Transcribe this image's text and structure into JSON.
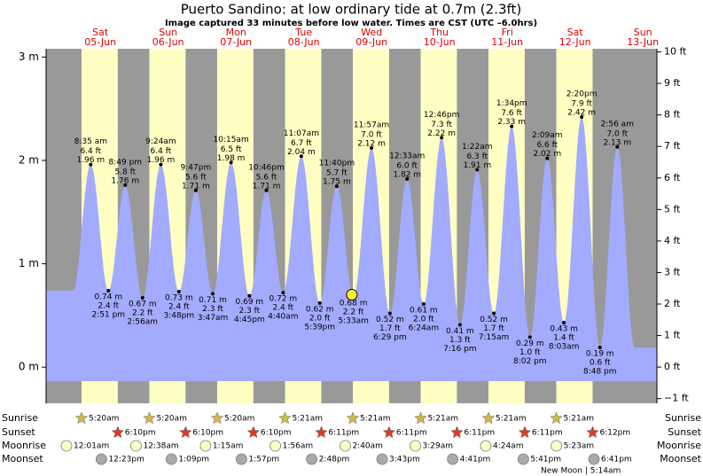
{
  "chart_data": {
    "type": "tide",
    "title": "Puerto Sandino: at low  ordinary tide at 0.7m (2.3ft)",
    "subtitle": "Image captured 33 minutes before low water. Times are CST (UTC –6.0hrs)",
    "ylim": [
      -0.35,
      3.08
    ],
    "yticks": [
      {
        "value": 0,
        "label": "0 m"
      },
      {
        "value": 1,
        "label": "1 m"
      },
      {
        "value": 2,
        "label": "2 m"
      },
      {
        "value": 3,
        "label": "3 m"
      }
    ],
    "y2lim": [
      -1.15,
      10.1
    ],
    "y2ticks": [
      {
        "value": -1,
        "label": "−1 ft"
      },
      {
        "value": 0,
        "label": "0 ft"
      },
      {
        "value": 1,
        "label": "1 ft"
      },
      {
        "value": 2,
        "label": "2 ft"
      },
      {
        "value": 3,
        "label": "3 ft"
      },
      {
        "value": 4,
        "label": "4 ft"
      },
      {
        "value": 5,
        "label": "5 ft"
      },
      {
        "value": 6,
        "label": "6 ft"
      },
      {
        "value": 7,
        "label": "7 ft"
      },
      {
        "value": 8,
        "label": "8 ft"
      },
      {
        "value": 9,
        "label": "9 ft"
      },
      {
        "value": 10,
        "label": "10 ft"
      }
    ],
    "row_labels": [
      "Sunrise",
      "Sunset",
      "Moonrise",
      "Moonset"
    ],
    "new_moon": "New Moon | 5:14am",
    "now": {
      "day": "09-Jun",
      "minutes_before_low": 33,
      "level": 0.7
    },
    "days": [
      {
        "dow": "Sat",
        "date": "05-Jun",
        "sunrise": "5:20am",
        "sunset": "6:10pm",
        "moonrise": "12:01am",
        "moonset": "12:23pm",
        "tides": [
          {
            "time": "8:35 am",
            "ft": "6.4 ft",
            "m": 1.96,
            "m_label": "1.96 m"
          },
          {
            "time": "2:51 pm",
            "ft": "2.4 ft",
            "m": 0.74,
            "m_label": "0.74 m"
          },
          {
            "time": "8:49 pm",
            "ft": "5.8 ft",
            "m": 1.76,
            "m_label": "1.76 m"
          }
        ]
      },
      {
        "dow": "Sun",
        "date": "06-Jun",
        "sunrise": "5:20am",
        "sunset": "6:10pm",
        "moonrise": "12:38am",
        "moonset": "1:09pm",
        "tides": [
          {
            "time": "2:56am",
            "ft": "2.2 ft",
            "m": 0.67,
            "m_label": "0.67 m"
          },
          {
            "time": "9:24am",
            "ft": "6.4 ft",
            "m": 1.96,
            "m_label": "1.96 m"
          },
          {
            "time": "3:48pm",
            "ft": "2.4 ft",
            "m": 0.73,
            "m_label": "0.73 m"
          },
          {
            "time": "9:47pm",
            "ft": "5.6 ft",
            "m": 1.71,
            "m_label": "1.71 m"
          }
        ]
      },
      {
        "dow": "Mon",
        "date": "07-Jun",
        "sunrise": "5:20am",
        "sunset": "6:10pm",
        "moonrise": "1:15am",
        "moonset": "1:57pm",
        "tides": [
          {
            "time": "3:47am",
            "ft": "2.3 ft",
            "m": 0.71,
            "m_label": "0.71 m"
          },
          {
            "time": "10:15am",
            "ft": "6.5 ft",
            "m": 1.98,
            "m_label": "1.98 m"
          },
          {
            "time": "4:45pm",
            "ft": "2.3 ft",
            "m": 0.69,
            "m_label": "0.69 m"
          },
          {
            "time": "10:46pm",
            "ft": "5.6 ft",
            "m": 1.71,
            "m_label": "1.71 m"
          }
        ]
      },
      {
        "dow": "Tue",
        "date": "08-Jun",
        "sunrise": "5:21am",
        "sunset": "6:11pm",
        "moonrise": "1:56am",
        "moonset": "2:48pm",
        "tides": [
          {
            "time": "4:40am",
            "ft": "2.4 ft",
            "m": 0.72,
            "m_label": "0.72 m"
          },
          {
            "time": "11:07am",
            "ft": "6.7 ft",
            "m": 2.04,
            "m_label": "2.04 m"
          },
          {
            "time": "5:39pm",
            "ft": "2.0 ft",
            "m": 0.62,
            "m_label": "0.62 m"
          },
          {
            "time": "11:40pm",
            "ft": "5.7 ft",
            "m": 1.75,
            "m_label": "1.75 m"
          }
        ]
      },
      {
        "dow": "Wed",
        "date": "09-Jun",
        "sunrise": "5:21am",
        "sunset": "6:11pm",
        "moonrise": "2:40am",
        "moonset": "3:43pm",
        "tides": [
          {
            "time": "5:33am",
            "ft": "2.2 ft",
            "m": 0.68,
            "m_label": "0.68 m"
          },
          {
            "time": "11:57am",
            "ft": "7.0 ft",
            "m": 2.12,
            "m_label": "2.12 m"
          },
          {
            "time": "6:29 pm",
            "ft": "1.7 ft",
            "m": 0.52,
            "m_label": "0.52 m"
          }
        ]
      },
      {
        "dow": "Thu",
        "date": "10-Jun",
        "sunrise": "5:21am",
        "sunset": "6:11pm",
        "moonrise": "3:29am",
        "moonset": "4:41pm",
        "tides": [
          {
            "time": "12:33am",
            "ft": "6.0 ft",
            "m": 1.82,
            "m_label": "1.82 m"
          },
          {
            "time": "6:24am",
            "ft": "2.0 ft",
            "m": 0.61,
            "m_label": "0.61 m"
          },
          {
            "time": "12:46pm",
            "ft": "7.3 ft",
            "m": 2.22,
            "m_label": "2.22 m"
          },
          {
            "time": "7:16 pm",
            "ft": "1.3 ft",
            "m": 0.41,
            "m_label": "0.41 m"
          }
        ]
      },
      {
        "dow": "Fri",
        "date": "11-Jun",
        "sunrise": "5:21am",
        "sunset": "6:11pm",
        "moonrise": "4:24am",
        "moonset": "5:41pm",
        "tides": [
          {
            "time": "1:22am",
            "ft": "6.3 ft",
            "m": 1.91,
            "m_label": "1.91 m"
          },
          {
            "time": "7:15am",
            "ft": "1.7 ft",
            "m": 0.52,
            "m_label": "0.52 m"
          },
          {
            "time": "1:34pm",
            "ft": "7.6 ft",
            "m": 2.33,
            "m_label": "2.33 m"
          },
          {
            "time": "8:02 pm",
            "ft": "1.0 ft",
            "m": 0.29,
            "m_label": "0.29 m"
          }
        ]
      },
      {
        "dow": "Sat",
        "date": "12-Jun",
        "sunrise": "5:21am",
        "sunset": "6:12pm",
        "moonrise": "5:23am",
        "moonset": "6:41pm",
        "tides": [
          {
            "time": "2:09am",
            "ft": "6.6 ft",
            "m": 2.02,
            "m_label": "2.02 m"
          },
          {
            "time": "8:03am",
            "ft": "1.4 ft",
            "m": 0.43,
            "m_label": "0.43 m"
          },
          {
            "time": "2:20pm",
            "ft": "7.9 ft",
            "m": 2.42,
            "m_label": "2.42 m"
          },
          {
            "time": "8:48 pm",
            "ft": "0.6 ft",
            "m": 0.19,
            "m_label": "0.19 m"
          }
        ]
      },
      {
        "dow": "Sun",
        "date": "13-Jun",
        "tides": [
          {
            "time": "2:56 am",
            "ft": "7.0 ft",
            "m": 2.13,
            "m_label": "2.13 m"
          }
        ]
      }
    ]
  }
}
